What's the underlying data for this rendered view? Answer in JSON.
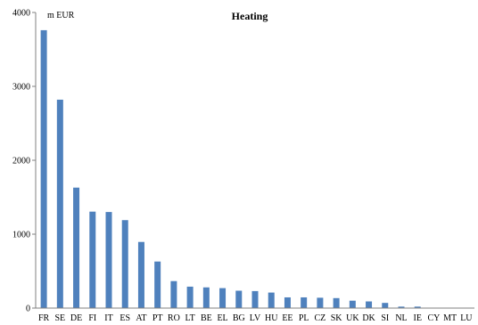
{
  "chart_data": {
    "type": "bar",
    "title": "Heating",
    "unit_label": "m EUR",
    "xlabel": "",
    "ylabel": "",
    "ylim": [
      0,
      4000
    ],
    "yticks": [
      0,
      1000,
      2000,
      3000,
      4000
    ],
    "grid": false,
    "bar_color": "#4f81bd",
    "categories": [
      "FR",
      "SE",
      "DE",
      "FI",
      "IT",
      "ES",
      "AT",
      "PT",
      "RO",
      "LT",
      "BE",
      "EL",
      "BG",
      "LV",
      "HU",
      "EE",
      "PL",
      "CZ",
      "SK",
      "UK",
      "DK",
      "SI",
      "NL",
      "IE",
      "CY",
      "MT",
      "LU"
    ],
    "values": [
      3760,
      2820,
      1630,
      1305,
      1300,
      1190,
      895,
      630,
      365,
      290,
      280,
      270,
      235,
      230,
      210,
      145,
      145,
      140,
      135,
      100,
      90,
      70,
      20,
      20,
      0,
      0,
      0
    ]
  }
}
